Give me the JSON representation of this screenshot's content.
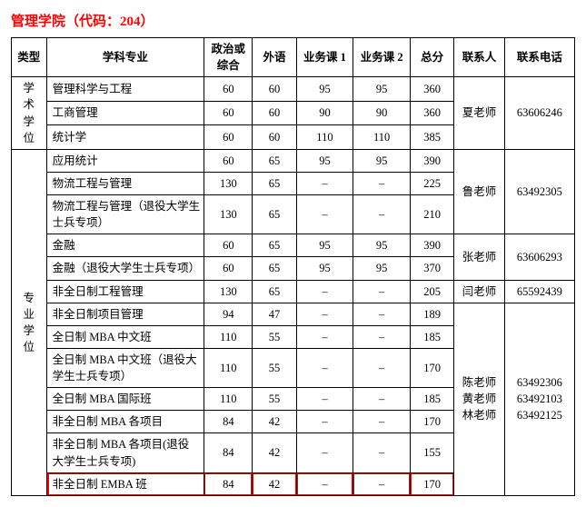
{
  "title": "管理学院（代码：204）",
  "headers": {
    "type": "类型",
    "subject": "学科专业",
    "score1": "政治或综合",
    "score2": "外语",
    "score3": "业务课 1",
    "score4": "业务课 2",
    "total": "总分",
    "contact": "联系人",
    "phone": "联系电话"
  },
  "groups": [
    {
      "type_label": "学术学位",
      "contact_blocks": [
        {
          "contact": "夏老师",
          "phone": "63606246",
          "span": 3
        }
      ],
      "rows": [
        {
          "subject": "管理科学与工程",
          "s1": "60",
          "s2": "60",
          "s3": "95",
          "s4": "95",
          "total": "360"
        },
        {
          "subject": "工商管理",
          "s1": "60",
          "s2": "60",
          "s3": "90",
          "s4": "90",
          "total": "360"
        },
        {
          "subject": "统计学",
          "s1": "60",
          "s2": "60",
          "s3": "110",
          "s4": "110",
          "total": "385"
        }
      ]
    },
    {
      "type_label": "专业学位",
      "contact_blocks": [
        {
          "contact": "鲁老师",
          "phone": "63492305",
          "span": 3
        },
        {
          "contact": "张老师",
          "phone": "63606293",
          "span": 2
        },
        {
          "contact": "闫老师",
          "phone": "65592439",
          "span": 1
        },
        {
          "contact": "陈老师\n黄老师\n林老师",
          "phone": "63492306\n63492103\n63492125",
          "span": 7
        }
      ],
      "rows": [
        {
          "subject": "应用统计",
          "s1": "60",
          "s2": "65",
          "s3": "95",
          "s4": "95",
          "total": "390"
        },
        {
          "subject": "物流工程与管理",
          "s1": "130",
          "s2": "65",
          "s3": "–",
          "s4": "–",
          "total": "225"
        },
        {
          "subject": "物流工程与管理（退役大学生士兵专项）",
          "s1": "130",
          "s2": "65",
          "s3": "–",
          "s4": "–",
          "total": "210"
        },
        {
          "subject": "金融",
          "s1": "60",
          "s2": "65",
          "s3": "95",
          "s4": "95",
          "total": "390"
        },
        {
          "subject": "金融（退役大学生士兵专项）",
          "s1": "60",
          "s2": "65",
          "s3": "95",
          "s4": "95",
          "total": "370"
        },
        {
          "subject": "非全日制工程管理",
          "s1": "130",
          "s2": "65",
          "s3": "–",
          "s4": "–",
          "total": "205"
        },
        {
          "subject": "非全日制项目管理",
          "s1": "94",
          "s2": "47",
          "s3": "–",
          "s4": "–",
          "total": "189"
        },
        {
          "subject": "全日制 MBA 中文班",
          "s1": "110",
          "s2": "55",
          "s3": "–",
          "s4": "–",
          "total": "185"
        },
        {
          "subject": "全日制 MBA 中文班（退役大学生士兵专项）",
          "s1": "110",
          "s2": "55",
          "s3": "–",
          "s4": "–",
          "total": "170"
        },
        {
          "subject": "全日制 MBA 国际班",
          "s1": "110",
          "s2": "55",
          "s3": "–",
          "s4": "–",
          "total": "185"
        },
        {
          "subject": "非全日制 MBA 各项目",
          "s1": "84",
          "s2": "42",
          "s3": "–",
          "s4": "–",
          "total": "170"
        },
        {
          "subject": "非全日制 MBA 各项目(退役大学生士兵专项)",
          "s1": "84",
          "s2": "42",
          "s3": "–",
          "s4": "–",
          "total": "155"
        },
        {
          "subject": "非全日制 EMBA 班",
          "s1": "84",
          "s2": "42",
          "s3": "–",
          "s4": "–",
          "total": "170",
          "highlight": true
        }
      ]
    }
  ],
  "style": {
    "title_color": "#ff0000",
    "highlight_border_color": "#ff0000",
    "border_color": "#000000",
    "background": "#ffffff",
    "font_family": "SimSun",
    "font_size_title": 15,
    "font_size_body": 12.5
  }
}
